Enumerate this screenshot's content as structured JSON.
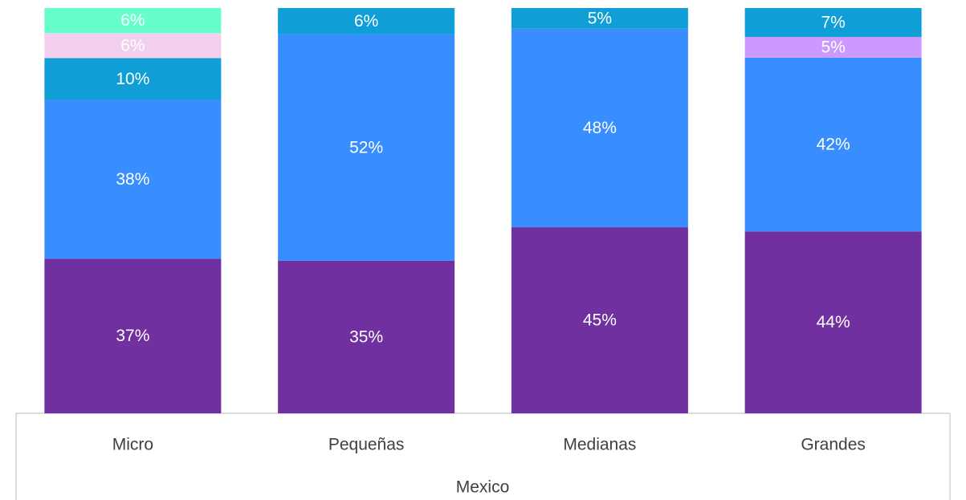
{
  "chart_data": {
    "type": "bar",
    "stacking": "percent",
    "categories": [
      "Micro",
      "Pequeñas",
      "Medianas",
      "Grandes"
    ],
    "group_label": "Mexico",
    "series": [
      {
        "color": "#7030a0",
        "values": [
          37,
          35,
          45,
          44
        ],
        "value_labels": [
          "37%",
          "35%",
          "45%",
          "44%"
        ]
      },
      {
        "color": "#388eff",
        "values": [
          38,
          52,
          48,
          42
        ],
        "value_labels": [
          "38%",
          "52%",
          "48%",
          "42%"
        ]
      },
      {
        "color": "#cc99ff",
        "values": [
          null,
          null,
          null,
          5
        ],
        "value_labels": [
          null,
          null,
          null,
          "5%"
        ]
      },
      {
        "color": "#0f9fd6",
        "values": [
          10,
          6,
          5,
          7
        ],
        "value_labels": [
          "10%",
          "6%",
          "5%",
          "7%"
        ]
      },
      {
        "color": "#f2cfee",
        "values": [
          6,
          null,
          null,
          null
        ],
        "value_labels": [
          "6%",
          null,
          null,
          null
        ]
      },
      {
        "color": "#66ffcc",
        "values": [
          6,
          null,
          null,
          null
        ],
        "value_labels": [
          "6%",
          null,
          null,
          null
        ]
      }
    ]
  }
}
